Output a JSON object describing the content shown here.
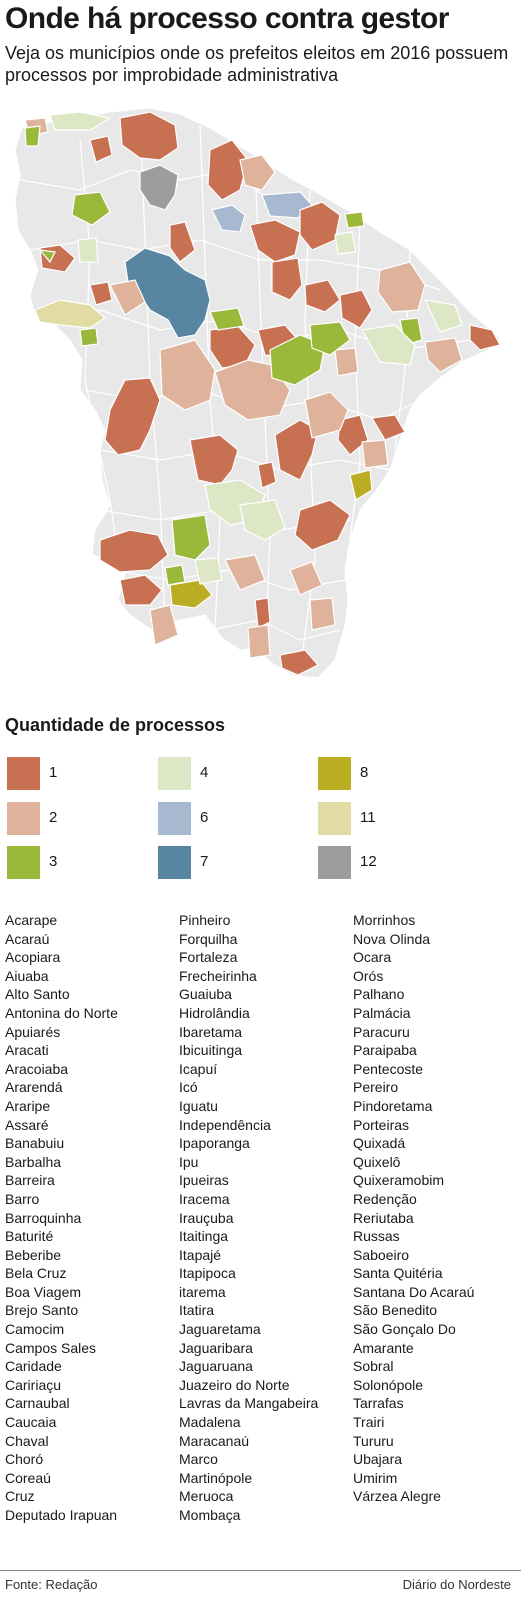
{
  "title": "Onde há processo contra gestor",
  "subtitle": "Veja os municípios onde os prefeitos eleitos em 2016 possuem processos por improbidade administrativa",
  "colors": {
    "base": "#e8e8e8",
    "border": "#ffffff",
    "c1": "#c87052",
    "c2": "#deb29b",
    "c3": "#9ab83a",
    "c4": "#dde7c6",
    "c6": "#a7b9d0",
    "c7": "#5785a2",
    "c8": "#bbad22",
    "c11": "#e0dca3",
    "c12": "#9d9c9e"
  },
  "legend": {
    "title": "Quantidade de processos",
    "items": [
      {
        "label": "1",
        "color": "#c87052"
      },
      {
        "label": "2",
        "color": "#deb29b"
      },
      {
        "label": "3",
        "color": "#9ab83a"
      },
      {
        "label": "4",
        "color": "#dde7c6"
      },
      {
        "label": "6",
        "color": "#a7b9d0"
      },
      {
        "label": "7",
        "color": "#5785a2"
      },
      {
        "label": "8",
        "color": "#bbad22"
      },
      {
        "label": "11",
        "color": "#e0dca3"
      },
      {
        "label": "12",
        "color": "#9d9c9e"
      }
    ]
  },
  "municipalities": {
    "col1": [
      "Acarape",
      "Acaraú",
      "Acopiara",
      "Aiuaba",
      "Alto Santo",
      "Antonina do Norte",
      "Apuiarés",
      "Aracati",
      "Aracoiaba",
      "Ararendá",
      "Araripe",
      "Assaré",
      "Banabuiu",
      "Barbalha",
      "Barreira",
      "Barro",
      "Barroquinha",
      "Baturité",
      "Beberibe",
      "Bela Cruz",
      "Boa Viagem",
      "Brejo Santo",
      "Camocim",
      "Campos Sales",
      "Caridade",
      "Caririaçu",
      "Carnaubal",
      "Caucaia",
      "Chaval",
      "Choró",
      "Coreaú",
      "Cruz",
      "Deputado Irapuan"
    ],
    "col2": [
      "Pinheiro",
      "Forquilha",
      "Fortaleza",
      "Frecheirinha",
      "Guaiuba",
      "Hidrolândia",
      "Ibaretama",
      "Ibicuitinga",
      "Icapuí",
      "Icó",
      "Iguatu",
      "Independência",
      "Ipaporanga",
      "Ipu",
      "Ipueiras",
      "Iracema",
      "Irauçuba",
      "Itaitinga",
      "Itapajé",
      "Itapipoca",
      "itarema",
      "Itatira",
      "Jaguaretama",
      "Jaguaribara",
      "Jaguaruana",
      "Juazeiro do Norte",
      "Lavras da Mangabeira",
      "Madalena",
      "Maracanaú",
      "Marco",
      "Martinópole",
      "Meruoca",
      "Mombaça"
    ],
    "col3": [
      "Morrinhos",
      "Nova Olinda",
      "Ocara",
      "Orós",
      "Palhano",
      "Palmácia",
      "Paracuru",
      "Paraipaba",
      "Pentecoste",
      "Pereiro",
      "Pindoretama",
      "Porteiras",
      "Quixadá",
      "Quixelô",
      "Quixeramobim",
      "Redenção",
      "Reriutaba",
      "Russas",
      "Saboeiro",
      "Santa Quitéria",
      "Santana Do Acaraú",
      "São Benedito",
      "São Gonçalo Do",
      "Amarante",
      "Sobral",
      "Solonópole",
      "Tarrafas",
      "Trairi",
      "Tururu",
      "Ubajara",
      "Umirim",
      "Várzea Alegre"
    ]
  },
  "footer": {
    "source": "Fonte: Redação",
    "publisher": "Diário do Nordeste"
  }
}
